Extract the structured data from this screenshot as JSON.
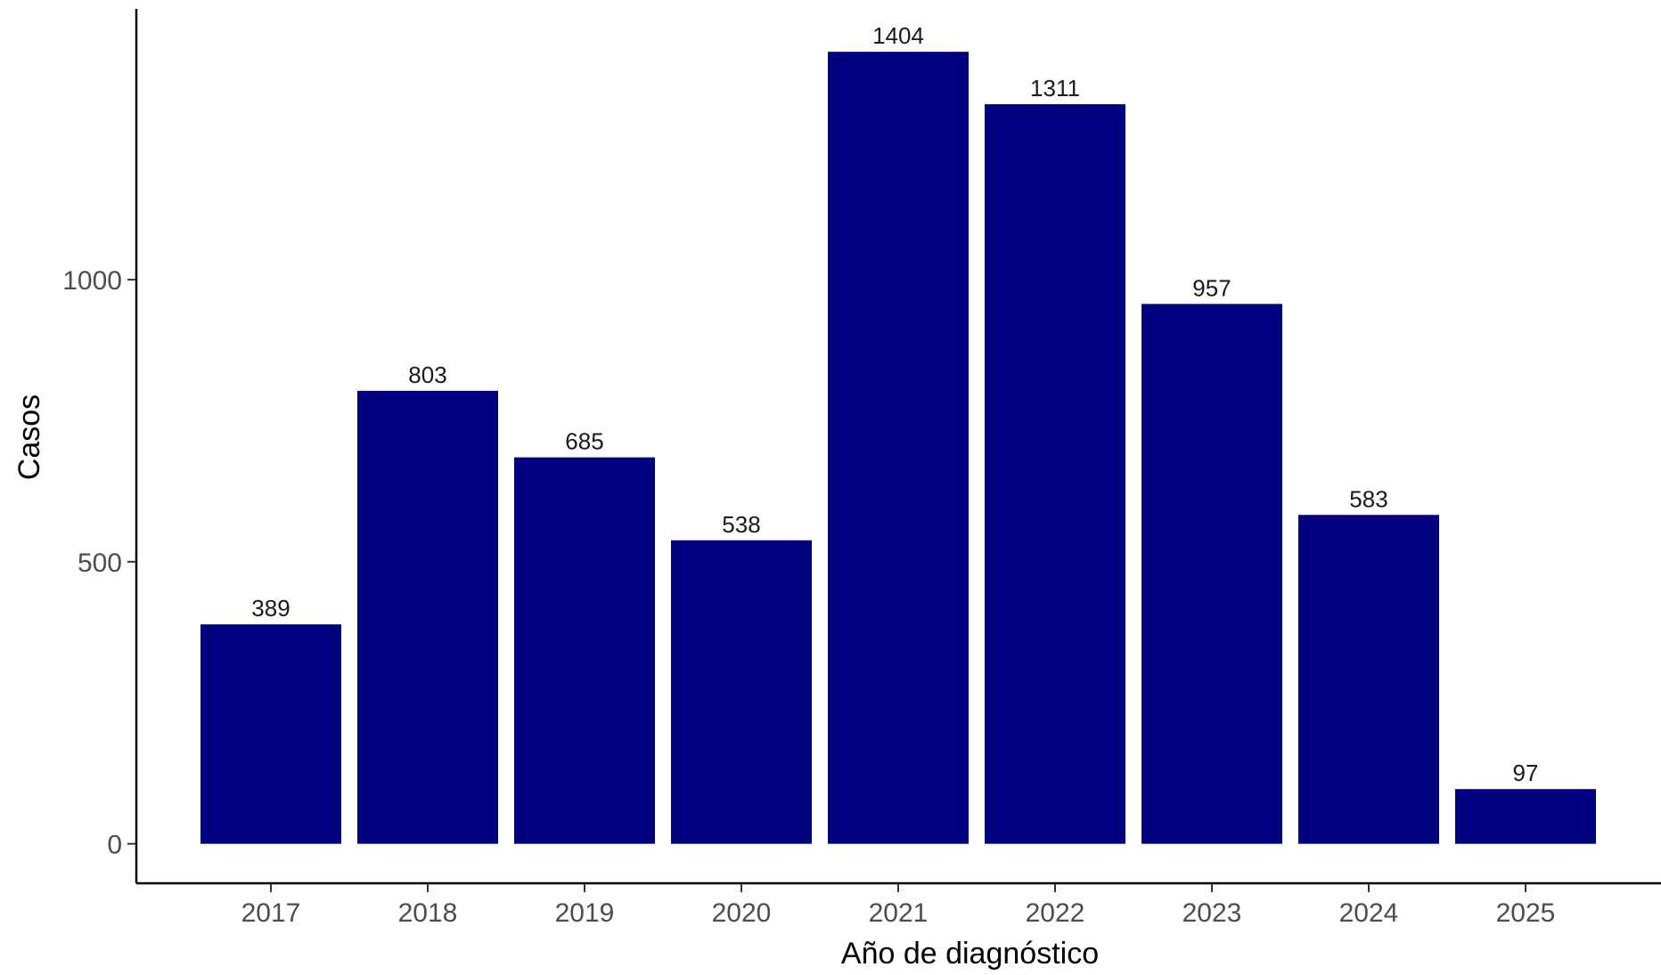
{
  "chart_data": {
    "type": "bar",
    "categories": [
      "2017",
      "2018",
      "2019",
      "2020",
      "2021",
      "2022",
      "2023",
      "2024",
      "2025"
    ],
    "values": [
      389,
      803,
      685,
      538,
      1404,
      1311,
      957,
      583,
      97
    ],
    "xlabel": "Año de diagnóstico",
    "ylabel": "Casos",
    "ylim": [
      -70,
      1480
    ],
    "yticks": [
      0,
      500,
      1000
    ],
    "bar_color": "#000080",
    "grid": false,
    "legend": "none"
  }
}
